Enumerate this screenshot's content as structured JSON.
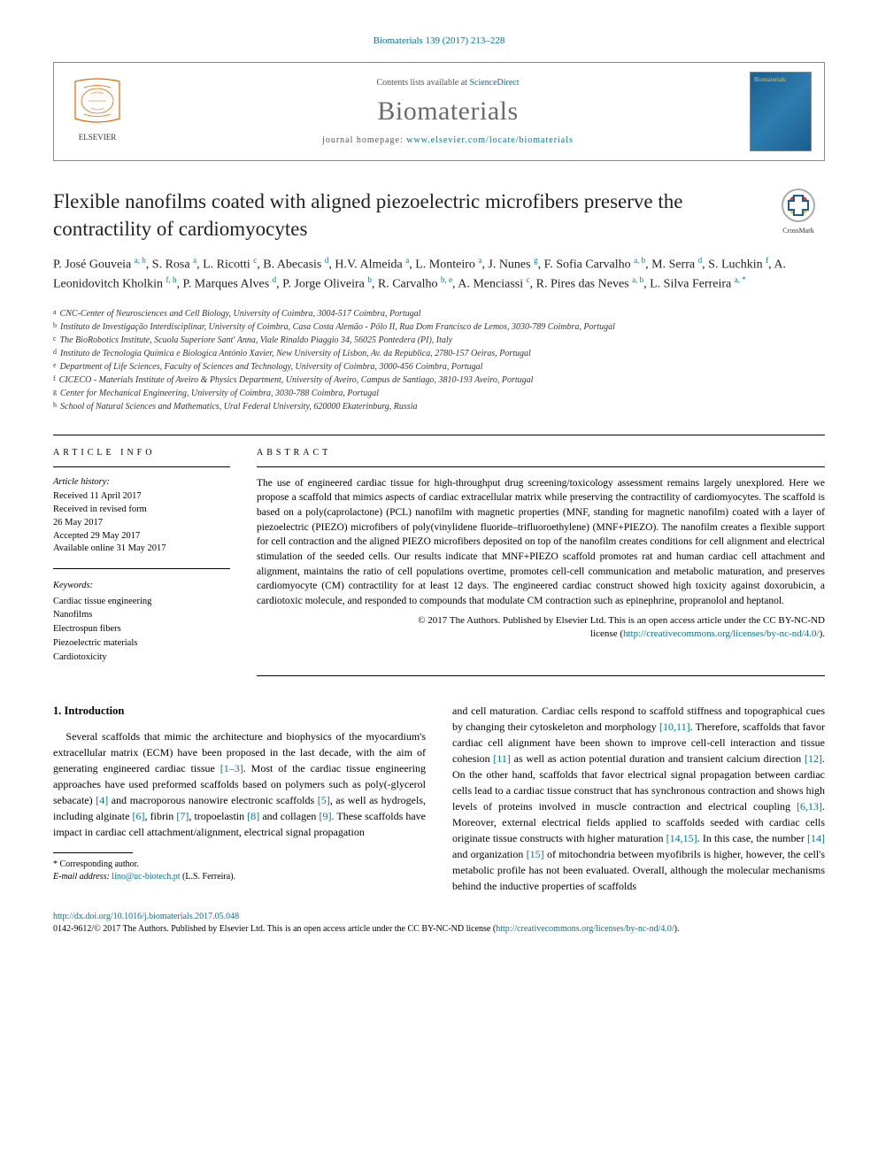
{
  "citation": "Biomaterials 139 (2017) 213–228",
  "header": {
    "contents_prefix": "Contents lists available at ",
    "contents_link": "ScienceDirect",
    "journal": "Biomaterials",
    "homepage_prefix": "journal homepage: ",
    "homepage_url": "www.elsevier.com/locate/biomaterials"
  },
  "crossmark": "CrossMark",
  "title": "Flexible nanofilms coated with aligned piezoelectric microfibers preserve the contractility of cardiomyocytes",
  "authors_html": "P. José Gouveia <sup>a, b</sup>, S. Rosa <sup>a</sup>, L. Ricotti <sup>c</sup>, B. Abecasis <sup>d</sup>, H.V. Almeida <sup>a</sup>, L. Monteiro <sup>a</sup>, J. Nunes <sup>g</sup>, F. Sofia Carvalho <sup>a, b</sup>, M. Serra <sup>d</sup>, S. Luchkin <sup>f</sup>, A. Leonidovitch Kholkin <sup>f, h</sup>, P. Marques Alves <sup>d</sup>, P. Jorge Oliveira <sup>b</sup>, R. Carvalho <sup>b, e</sup>, A. Menciassi <sup>c</sup>, R. Pires das Neves <sup>a, b</sup>, L. Silva Ferreira <sup>a, *</sup>",
  "affiliations": [
    {
      "sup": "a",
      "text": "CNC-Center of Neurosciences and Cell Biology, University of Coimbra, 3004-517 Coimbra, Portugal"
    },
    {
      "sup": "b",
      "text": "Instituto de Investigação Interdisciplinar, University of Coimbra, Casa Costa Alemão - Pólo II, Rua Dom Francisco de Lemos, 3030-789 Coimbra, Portugal"
    },
    {
      "sup": "c",
      "text": "The BioRobotics Institute, Scuola Superiore Sant' Anna, Viale Rinaldo Piaggio 34, 56025 Pontedera (PI), Italy"
    },
    {
      "sup": "d",
      "text": "Instituto de Tecnologia Química e Biologica António Xavier, New University of Lisbon, Av. da Republica, 2780-157 Oeiras, Portugal"
    },
    {
      "sup": "e",
      "text": "Department of Life Sciences, Faculty of Sciences and Technology, University of Coimbra, 3000-456 Coimbra, Portugal"
    },
    {
      "sup": "f",
      "text": "CICECO - Materials Institute of Aveiro & Physics Department, University of Aveiro, Campus de Santiago, 3810-193 Aveiro, Portugal"
    },
    {
      "sup": "g",
      "text": "Center for Mechanical Engineering, University of Coimbra, 3030-788 Coimbra, Portugal"
    },
    {
      "sup": "h",
      "text": "School of Natural Sciences and Mathematics, Ural Federal University, 620000 Ekaterinburg, Russia"
    }
  ],
  "info": {
    "heading": "ARTICLE INFO",
    "history_label": "Article history:",
    "history": [
      "Received 11 April 2017",
      "Received in revised form",
      "26 May 2017",
      "Accepted 29 May 2017",
      "Available online 31 May 2017"
    ],
    "keywords_label": "Keywords:",
    "keywords": [
      "Cardiac tissue engineering",
      "Nanofilms",
      "Electrospun fibers",
      "Piezoelectric materials",
      "Cardiotoxicity"
    ]
  },
  "abstract": {
    "heading": "ABSTRACT",
    "text": "The use of engineered cardiac tissue for high-throughput drug screening/toxicology assessment remains largely unexplored. Here we propose a scaffold that mimics aspects of cardiac extracellular matrix while preserving the contractility of cardiomyocytes. The scaffold is based on a poly(caprolactone) (PCL) nanofilm with magnetic properties (MNF, standing for magnetic nanofilm) coated with a layer of piezoelectric (PIEZO) microfibers of poly(vinylidene fluoride–trifluoroethylene) (MNF+PIEZO). The nanofilm creates a flexible support for cell contraction and the aligned PIEZO microfibers deposited on top of the nanofilm creates conditions for cell alignment and electrical stimulation of the seeded cells. Our results indicate that MNF+PIEZO scaffold promotes rat and human cardiac cell attachment and alignment, maintains the ratio of cell populations overtime, promotes cell-cell communication and metabolic maturation, and preserves cardiomyocyte (CM) contractility for at least 12 days. The engineered cardiac construct showed high toxicity against doxorubicin, a cardiotoxic molecule, and responded to compounds that modulate CM contraction such as epinephrine, propranolol and heptanol.",
    "copyright1": "© 2017 The Authors. Published by Elsevier Ltd. This is an open access article under the CC BY-NC-ND",
    "copyright2_prefix": "license (",
    "copyright2_link": "http://creativecommons.org/licenses/by-nc-nd/4.0/",
    "copyright2_suffix": ")."
  },
  "body": {
    "section_heading": "1. Introduction",
    "col1_html": "Several scaffolds that mimic the architecture and biophysics of the myocardium's extracellular matrix (ECM) have been proposed in the last decade, with the aim of generating engineered cardiac tissue <span class='ref-link'>[1–3]</span>. Most of the cardiac tissue engineering approaches have used preformed scaffolds based on polymers such as poly(-glycerol sebacate) <span class='ref-link'>[4]</span> and macroporous nanowire electronic scaffolds <span class='ref-link'>[5]</span>, as well as hydrogels, including alginate <span class='ref-link'>[6]</span>, fibrin <span class='ref-link'>[7]</span>, tropoelastin <span class='ref-link'>[8]</span> and collagen <span class='ref-link'>[9]</span>. These scaffolds have impact in cardiac cell attachment/alignment, electrical signal propagation",
    "col2_html": "and cell maturation. Cardiac cells respond to scaffold stiffness and topographical cues by changing their cytoskeleton and morphology <span class='ref-link'>[10,11]</span>. Therefore, scaffolds that favor cardiac cell alignment have been shown to improve cell-cell interaction and tissue cohesion <span class='ref-link'>[11]</span> as well as action potential duration and transient calcium direction <span class='ref-link'>[12]</span>. On the other hand, scaffolds that favor electrical signal propagation between cardiac cells lead to a cardiac tissue construct that has synchronous contraction and shows high levels of proteins involved in muscle contraction and electrical coupling <span class='ref-link'>[6,13]</span>. Moreover, external electrical fields applied to scaffolds seeded with cardiac cells originate tissue constructs with higher maturation <span class='ref-link'>[14,15]</span>. In this case, the number <span class='ref-link'>[14]</span> and organization <span class='ref-link'>[15]</span> of mitochondria between myofibrils is higher, however, the cell's metabolic profile has not been evaluated. Overall, although the molecular mechanisms behind the inductive properties of scaffolds"
  },
  "footnote": {
    "corr": "* Corresponding author.",
    "email_label": "E-mail address: ",
    "email": "lino@uc-biotech.pt",
    "email_suffix": " (L.S. Ferreira)."
  },
  "footer": {
    "doi": "http://dx.doi.org/10.1016/j.biomaterials.2017.05.048",
    "line2_prefix": "0142-9612/© 2017 The Authors. Published by Elsevier Ltd. This is an open access article under the CC BY-NC-ND license (",
    "line2_link": "http://creativecommons.org/licenses/by-nc-nd/4.0/",
    "line2_suffix": ")."
  },
  "colors": {
    "link": "#007398",
    "journal_gray": "#6b6b6b",
    "elsevier_orange": "#eb6500"
  }
}
